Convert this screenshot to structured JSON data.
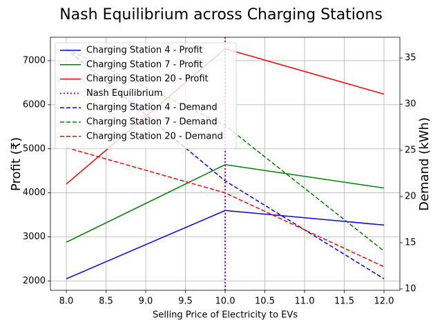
{
  "chart_data": {
    "type": "line",
    "title": "Nash Equilibrium across Charging Stations",
    "xlabel": "Selling Price of Electricity to EVs",
    "ylabel": "Profit (₹)",
    "y2label": "Demand (kWh)",
    "x": [
      8,
      10,
      12
    ],
    "xlim": [
      7.8,
      12.2
    ],
    "xticks": [
      {
        "value": 8,
        "label": "8.0"
      },
      {
        "value": 8.5,
        "label": "8.5"
      },
      {
        "value": 9,
        "label": "9.0"
      },
      {
        "value": 9.5,
        "label": "9.5"
      },
      {
        "value": 10,
        "label": "10.0"
      },
      {
        "value": 10.5,
        "label": "10.5"
      },
      {
        "value": 11,
        "label": "11.0"
      },
      {
        "value": 11.5,
        "label": "11.5"
      },
      {
        "value": 12,
        "label": "12.0"
      }
    ],
    "ylim": [
      1789,
      7531
    ],
    "yticks": [
      2000,
      3000,
      4000,
      5000,
      6000,
      7000
    ],
    "y2lim": [
      9.85,
      37.25
    ],
    "y2ticks": [
      10,
      15,
      20,
      25,
      30,
      35
    ],
    "grid": true,
    "legend": "upper left",
    "series": [
      {
        "name": "Charging Station 4 - Profit",
        "color": "#0000ff",
        "linestyle": "solid",
        "axis": "y",
        "values": [
          2050,
          3600,
          3270
        ]
      },
      {
        "name": "Charging Station 7 - Profit",
        "color": "#008000",
        "linestyle": "solid",
        "axis": "y",
        "values": [
          2880,
          4640,
          4110
        ]
      },
      {
        "name": "Charging Station 20 - Profit",
        "color": "#ff0000",
        "linestyle": "solid",
        "axis": "y",
        "values": [
          4200,
          7270,
          6240
        ]
      },
      {
        "name": "Charging Station 4 - Demand",
        "color": "#0000ff",
        "linestyle": "dashed",
        "axis": "y2",
        "values": [
          36,
          21.7,
          11.1
        ]
      },
      {
        "name": "Charging Station 7 - Demand",
        "color": "#008000",
        "linestyle": "dashed",
        "axis": "y2",
        "values": [
          36,
          27.7,
          14.1
        ]
      },
      {
        "name": "Charging Station 20 - Demand",
        "color": "#ff0000",
        "linestyle": "dashed",
        "axis": "y2",
        "values": [
          25.3,
          20.4,
          12.4
        ]
      }
    ],
    "vline": {
      "name": "Nash Equilibrium",
      "color": "#bf00bf",
      "linestyle": "dotted",
      "x": 10
    }
  }
}
